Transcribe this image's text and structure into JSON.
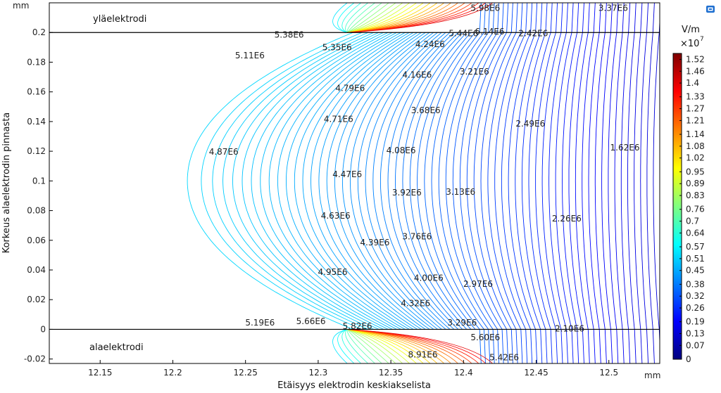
{
  "chart_data": {
    "type": "contour",
    "xlabel": "Etäisyys elektrodin keskiakselista",
    "ylabel": "Korkeus alaelektrodin pinnasta",
    "x_unit": "mm",
    "y_unit": "mm",
    "xlim": [
      12.115,
      12.535
    ],
    "ylim": [
      -0.023,
      0.22
    ],
    "x_ticks": [
      "12.15",
      "12.2",
      "12.25",
      "12.3",
      "12.35",
      "12.4",
      "12.45",
      "12.5"
    ],
    "y_ticks": [
      "-0.02",
      "0",
      "0.02",
      "0.04",
      "0.06",
      "0.08",
      "0.1",
      "0.12",
      "0.14",
      "0.16",
      "0.18",
      "0.2"
    ],
    "region_labels": {
      "top": "yläelektrodi",
      "bottom": "alaelektrodi"
    },
    "colorbar": {
      "unit": "V/m",
      "multiplier": "×10",
      "exponent": "7",
      "ticks": [
        "1.52",
        "1.46",
        "1.4",
        "1.33",
        "1.27",
        "1.21",
        "1.14",
        "1.08",
        "1.02",
        "0.95",
        "0.89",
        "0.83",
        "0.76",
        "0.7",
        "0.64",
        "0.57",
        "0.51",
        "0.45",
        "0.38",
        "0.32",
        "0.26",
        "0.19",
        "0.13",
        "0.07",
        "0"
      ],
      "range": [
        0,
        1.55
      ],
      "colors": [
        "#00007f",
        "#0000ff",
        "#0080ff",
        "#00ffff",
        "#80ff80",
        "#ffff00",
        "#ff8000",
        "#ff0000",
        "#7f0000"
      ]
    },
    "contour_labels": [
      {
        "text": "5.38E6",
        "x": 12.28,
        "y": 0.1985
      },
      {
        "text": "5.11E6",
        "x": 12.253,
        "y": 0.1845
      },
      {
        "text": "5.35E6",
        "x": 12.313,
        "y": 0.19
      },
      {
        "text": "4.24E6",
        "x": 12.377,
        "y": 0.192
      },
      {
        "text": "4.16E6",
        "x": 12.368,
        "y": 0.1715
      },
      {
        "text": "3.21E6",
        "x": 12.4075,
        "y": 0.1735
      },
      {
        "text": "4.79E6",
        "x": 12.322,
        "y": 0.1625
      },
      {
        "text": "3.68E6",
        "x": 12.374,
        "y": 0.1475
      },
      {
        "text": "4.71E6",
        "x": 12.314,
        "y": 0.1415
      },
      {
        "text": "2.49E6",
        "x": 12.446,
        "y": 0.1385
      },
      {
        "text": "4.87E6",
        "x": 12.235,
        "y": 0.1195
      },
      {
        "text": "4.08E6",
        "x": 12.357,
        "y": 0.1205
      },
      {
        "text": "1.62E6",
        "x": 12.511,
        "y": 0.1225
      },
      {
        "text": "4.47E6",
        "x": 12.32,
        "y": 0.1045
      },
      {
        "text": "3.92E6",
        "x": 12.361,
        "y": 0.092
      },
      {
        "text": "3.13E6",
        "x": 12.398,
        "y": 0.0925
      },
      {
        "text": "4.63E6",
        "x": 12.312,
        "y": 0.0765
      },
      {
        "text": "2.26E6",
        "x": 12.471,
        "y": 0.0745
      },
      {
        "text": "3.76E6",
        "x": 12.368,
        "y": 0.0625
      },
      {
        "text": "4.39E6",
        "x": 12.339,
        "y": 0.0585
      },
      {
        "text": "4.95E6",
        "x": 12.31,
        "y": 0.0385
      },
      {
        "text": "4.00E6",
        "x": 12.376,
        "y": 0.0345
      },
      {
        "text": "2.97E6",
        "x": 12.41,
        "y": 0.0305
      },
      {
        "text": "4.32E6",
        "x": 12.367,
        "y": 0.0175
      },
      {
        "text": "3.29E6",
        "x": 12.399,
        "y": 0.0045
      },
      {
        "text": "5.19E6",
        "x": 12.26,
        "y": 0.0045
      },
      {
        "text": "5.66E6",
        "x": 12.295,
        "y": 0.0055
      },
      {
        "text": "5.82E6",
        "x": 12.327,
        "y": 0.002
      },
      {
        "text": "2.10E6",
        "x": 12.473,
        "y": 0.0005
      },
      {
        "text": "5.42E6",
        "x": 12.428,
        "y": -0.019
      },
      {
        "text": "5.60E6",
        "x": 12.415,
        "y": -0.0055
      },
      {
        "text": "8.91E6",
        "x": 12.372,
        "y": -0.017
      },
      {
        "text": "6.14E6",
        "x": 12.418,
        "y": 0.2005
      },
      {
        "text": "2.42E6",
        "x": 12.448,
        "y": 0.1995
      },
      {
        "text": "3.37E6",
        "x": 12.503,
        "y": 0.2165
      },
      {
        "text": "5.98E6",
        "x": 12.415,
        "y": 0.2165
      },
      {
        "text": "5.44E6",
        "x": 12.4,
        "y": 0.1995
      }
    ]
  },
  "ui": {
    "toolbar_icon": "export-image-icon"
  }
}
